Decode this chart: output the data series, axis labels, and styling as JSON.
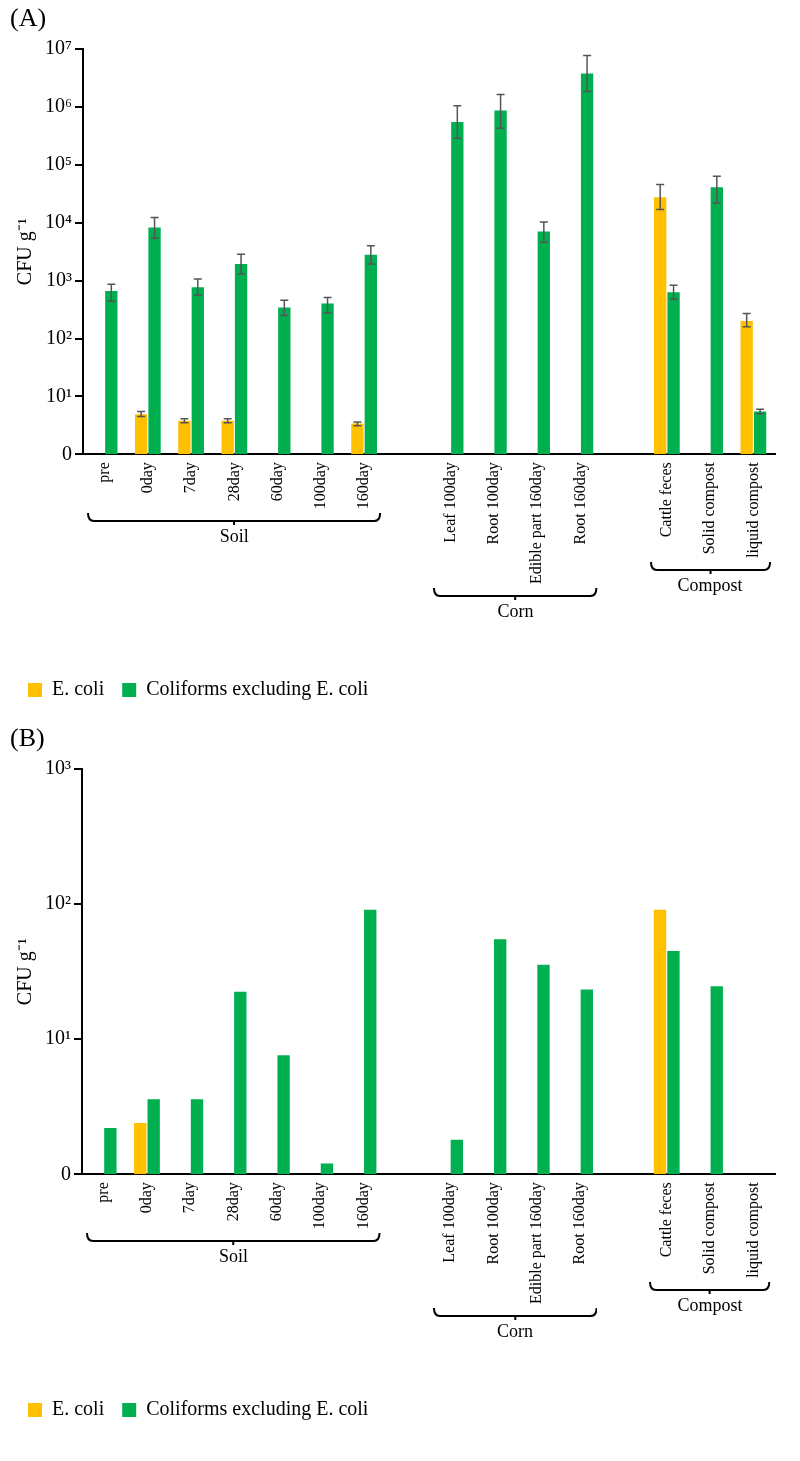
{
  "chart_data": [
    {
      "type": "bar",
      "title": "(A)",
      "ylabel": "CFU g⁻¹",
      "categories": [
        "pre",
        "0day",
        "7day",
        "28day",
        "60day",
        "100day",
        "160day",
        null,
        "Leaf 100day",
        "Root 100day",
        "Edible part 160day",
        "Root 160day",
        null,
        "Cattle feces",
        "Solid compost",
        "liquid compost"
      ],
      "series": [
        {
          "name": "E. coli",
          "color": "#ffc000",
          "values": [
            null,
            4.9,
            3.8,
            3.8,
            null,
            null,
            3.4,
            null,
            null,
            null,
            null,
            null,
            null,
            27500,
            null,
            200
          ],
          "errors": [
            null,
            [
              4.5,
              5.5
            ],
            [
              3.5,
              4.1
            ],
            [
              3.5,
              4.1
            ],
            null,
            null,
            [
              3.1,
              3.6
            ],
            null,
            null,
            null,
            null,
            null,
            null,
            [
              17000,
              46000
            ],
            null,
            [
              160,
              270
            ]
          ]
        },
        {
          "name": "Coliforms excluding E. coli",
          "color": "#00b050",
          "values": [
            660,
            8300,
            770,
            1950,
            345,
            405,
            2800,
            null,
            550000,
            870000,
            7100,
            3800000,
            null,
            630,
            41000,
            5.5
          ],
          "errors": [
            [
              440,
              870
            ],
            [
              5400,
              12300
            ],
            [
              560,
              1070
            ],
            [
              1300,
              2870
            ],
            [
              250,
              460
            ],
            [
              280,
              510
            ],
            [
              1950,
              4000
            ],
            null,
            [
              290000,
              1050000
            ],
            [
              430000,
              1650000
            ],
            [
              4600,
              10300
            ],
            [
              1860000,
              7800000
            ],
            null,
            [
              475,
              830
            ],
            [
              22000,
              64000
            ],
            [
              5,
              6
            ]
          ]
        }
      ],
      "ylim": [
        0,
        10000000
      ],
      "yticks": [
        0,
        {
          "value": 10,
          "label": "10¹"
        },
        {
          "value": 100,
          "label": "10²"
        },
        {
          "value": 1000,
          "label": "10³"
        },
        {
          "value": 10000,
          "label": "10⁴"
        },
        {
          "value": 100000,
          "label": "10⁵"
        },
        {
          "value": 1000000,
          "label": "10⁶"
        },
        {
          "value": 10000000,
          "label": "10⁷"
        }
      ],
      "log": true,
      "grid": false,
      "legend": "bottom",
      "annotations": [
        "Soil",
        "Corn",
        "Compost"
      ]
    },
    {
      "type": "bar",
      "title": "(B)",
      "ylabel": "CFU g⁻¹",
      "categories": [
        "pre",
        "0day",
        "7day",
        "28day",
        "60day",
        "100day",
        "160day",
        null,
        "Leaf 100day",
        "Root 100day",
        "Edible part 160day",
        "Root 160day",
        null,
        "Cattle feces",
        "Solid compost",
        "liquid compost"
      ],
      "series": [
        {
          "name": "E. coli",
          "color": "#ffc000",
          "values": [
            null,
            2.4,
            null,
            null,
            null,
            null,
            null,
            null,
            null,
            null,
            null,
            null,
            null,
            91,
            null,
            null
          ]
        },
        {
          "name": "Coliforms excluding E. coli",
          "color": "#00b050",
          "values": [
            2.2,
            3.6,
            3.6,
            22.5,
            7.6,
            1.2,
            91,
            null,
            1.8,
            55,
            35.6,
            23.4,
            null,
            45,
            24.7,
            null
          ]
        }
      ],
      "ylim": [
        0,
        1000
      ],
      "yticks": [
        0,
        {
          "value": 10,
          "label": "10¹"
        },
        {
          "value": 100,
          "label": "10²"
        },
        {
          "value": 1000,
          "label": "10³"
        }
      ],
      "log": true,
      "grid": false,
      "legend": "bottom",
      "annotations": [
        "Soil",
        "Corn",
        "Compost"
      ]
    }
  ]
}
